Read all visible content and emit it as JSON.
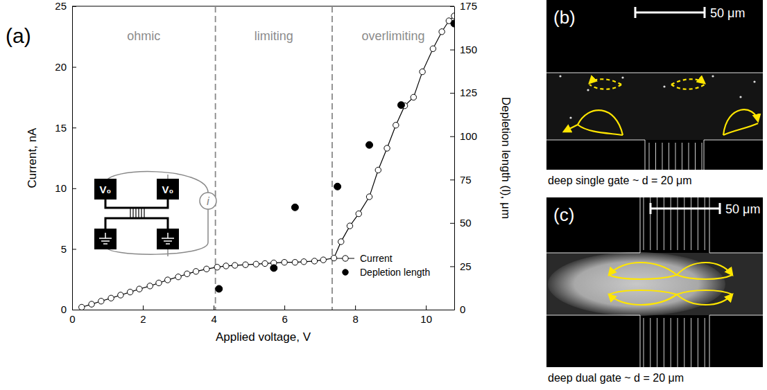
{
  "chart_data": {
    "type": "line",
    "panel_label": "(a)",
    "x_label": "Applied voltage, V",
    "y_label": "Current, nA",
    "y2_label": "Depletion length (l), μm",
    "xlim": [
      0,
      10.8
    ],
    "xticks": [
      0,
      2,
      4,
      6,
      8,
      10
    ],
    "ylim": [
      0,
      25
    ],
    "yticks": [
      0,
      5,
      10,
      15,
      20,
      25
    ],
    "y2lim": [
      0,
      175
    ],
    "y2ticks": [
      0,
      25,
      50,
      75,
      100,
      125,
      150,
      175
    ],
    "grid": false,
    "legend": "lower right",
    "dividers": [
      4.05,
      7.35
    ],
    "region_labels": [
      "ohmic",
      "limiting",
      "overlimiting"
    ],
    "inset": {
      "sources": [
        "V₀",
        "V₀"
      ],
      "meter": "i"
    },
    "series": [
      {
        "name": "Current",
        "color": "#000000",
        "marker": "open-circle",
        "line_style": "solid",
        "x": [
          0.27,
          0.55,
          0.82,
          1.1,
          1.37,
          1.64,
          1.9,
          2.2,
          2.45,
          2.7,
          3.0,
          3.25,
          3.5,
          3.8,
          4.1,
          4.35,
          4.6,
          4.9,
          5.2,
          5.45,
          5.7,
          6.0,
          6.3,
          6.55,
          6.85,
          7.1,
          7.4,
          7.6,
          7.85,
          8.1,
          8.4,
          8.65,
          8.9,
          9.15,
          9.4,
          9.65,
          9.9,
          10.2,
          10.45,
          10.65,
          10.8
        ],
        "values": [
          0.2,
          0.45,
          0.7,
          0.95,
          1.2,
          1.45,
          1.7,
          1.95,
          2.2,
          2.45,
          2.7,
          2.95,
          3.15,
          3.35,
          3.5,
          3.6,
          3.65,
          3.7,
          3.75,
          3.8,
          3.85,
          3.9,
          3.9,
          3.95,
          4.0,
          4.1,
          4.25,
          5.6,
          6.9,
          7.9,
          9.3,
          11.5,
          13.3,
          15.2,
          16.8,
          17.5,
          19.6,
          21.5,
          22.9,
          23.8,
          24.2
        ]
      },
      {
        "name": "Depletion length",
        "color": "#000000",
        "marker": "filled-circle",
        "line_style": "none",
        "axis": "y2",
        "x": [
          4.15,
          5.7,
          6.3,
          7.5,
          8.4,
          9.3,
          10.8
        ],
        "values": [
          12,
          24,
          59,
          71,
          95,
          118,
          165
        ]
      }
    ]
  },
  "panels": [
    {
      "label": "(b)",
      "scale_bar": "50 μm",
      "caption": "deep single gate ~ d = 20 μm"
    },
    {
      "label": "(c)",
      "scale_bar": "50 μm",
      "caption": "deep dual gate ~ d = 20 μm"
    }
  ]
}
